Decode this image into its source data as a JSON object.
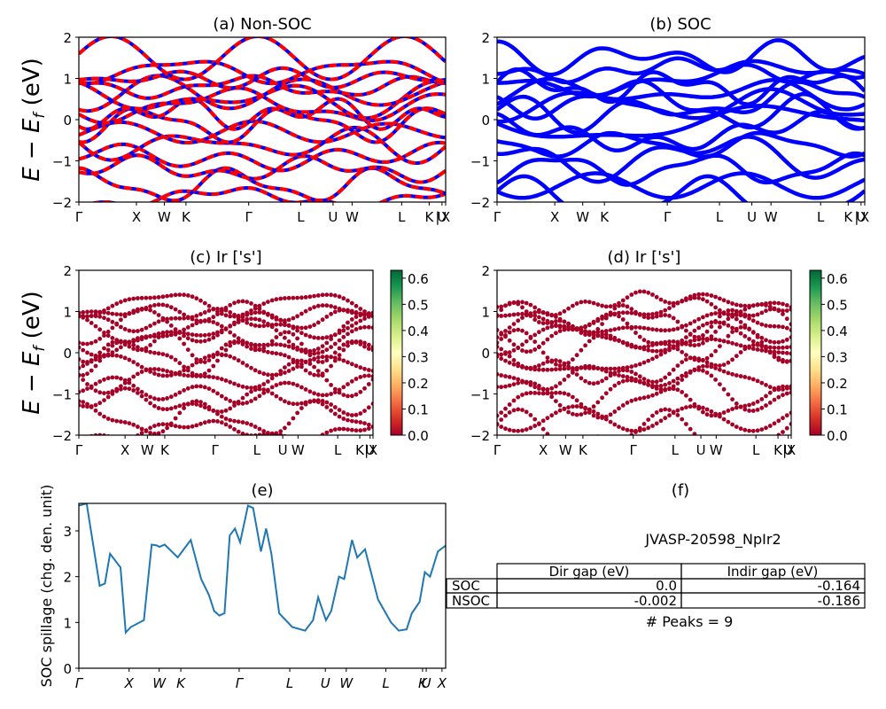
{
  "charts": {
    "a": {
      "title": "(a) Non-SOC",
      "ylabel": "E − E_f (eV)",
      "ylim": [
        -2,
        2
      ],
      "yticks": [
        "2",
        "1",
        "0",
        "−1",
        "−2"
      ],
      "kpath": [
        "Γ",
        "X",
        "W",
        "K",
        "Γ",
        "L",
        "U",
        "W",
        "L",
        "K",
        "|",
        "U",
        "X"
      ],
      "kpos": [
        0,
        0.21,
        0.31,
        0.39,
        0.62,
        0.81,
        0.93,
        1.0,
        1.18,
        1.28,
        1.31,
        1.34,
        1.38
      ],
      "styles": [
        "#0000ff",
        "#ff0000"
      ]
    },
    "b": {
      "title": "(b) SOC",
      "ylim": [
        -2,
        2
      ],
      "yticks": [
        "2",
        "1",
        "0",
        "−1",
        "−2"
      ],
      "kpath": [
        "Γ",
        "X",
        "W",
        "K",
        "Γ",
        "L",
        "U",
        "W",
        "L",
        "K",
        "|",
        "U",
        "X"
      ],
      "kpos": [
        0,
        0.21,
        0.31,
        0.39,
        0.62,
        0.81,
        0.93,
        1.0,
        1.18,
        1.28,
        1.31,
        1.34,
        1.38
      ],
      "color": "#0000ff"
    },
    "c": {
      "title": "(c)  Ir ['s']",
      "ylabel": "E − E_f (eV)",
      "ylim": [
        -2,
        2
      ],
      "yticks": [
        "2",
        "1",
        "0",
        "−1",
        "−2"
      ],
      "kpath": [
        "Γ",
        "X",
        "W",
        "K",
        "Γ",
        "L",
        "U",
        "W",
        "L",
        "K",
        "|",
        "U",
        "X"
      ],
      "colorbar_ticks": [
        "0.6",
        "0.5",
        "0.4",
        "0.3",
        "0.2",
        "0.1",
        "0.0"
      ],
      "colorbar_range": [
        0,
        0.63
      ],
      "dot_color": "#a50026"
    },
    "d": {
      "title": "(d) Ir ['s']",
      "ylim": [
        -2,
        2
      ],
      "yticks": [
        "2",
        "1",
        "0",
        "−1",
        "−2"
      ],
      "kpath": [
        "Γ",
        "X",
        "W",
        "K",
        "Γ",
        "L",
        "U",
        "W",
        "L",
        "K",
        "|",
        "U",
        "X"
      ],
      "colorbar_ticks": [
        "0.6",
        "0.5",
        "0.4",
        "0.3",
        "0.2",
        "0.1",
        "0.0"
      ],
      "colorbar_range": [
        0,
        0.63
      ],
      "dot_color": "#a50026"
    },
    "e": {
      "title": "(e)",
      "ylabel": "SOC spillage (chg. den. unit)",
      "ylim": [
        0,
        3.6
      ],
      "yticks": [
        "0",
        "1",
        "2",
        "3"
      ],
      "kpath": [
        "Γ",
        "X",
        "W",
        "K",
        "Γ",
        "L",
        "U",
        "W",
        "L",
        "K",
        "U",
        "X"
      ],
      "line_color": "#1f77b4"
    },
    "f": {
      "title": "(f)",
      "material": "JVASP-20598_NpIr2",
      "table": {
        "col_headers": [
          "Dir gap (eV)",
          "Indir gap (eV)"
        ],
        "rows": [
          {
            "label": "SOC",
            "values": [
              "0.0",
              "-0.164"
            ]
          },
          {
            "label": "NSOC",
            "values": [
              "-0.002",
              "-0.186"
            ]
          }
        ]
      },
      "peaks": "# Peaks = 9"
    }
  },
  "chart_data": [
    {
      "type": "line",
      "title": "(a) Non-SOC",
      "ylabel": "E - E_f (eV)",
      "ylim": [
        -2,
        2
      ],
      "x_ticks": [
        "Γ",
        "X",
        "W",
        "K",
        "Γ",
        "L",
        "U",
        "W",
        "L",
        "K|U",
        "X"
      ],
      "series": []
    },
    {
      "type": "line",
      "title": "(b) SOC",
      "ylim": [
        -2,
        2
      ],
      "x_ticks": [
        "Γ",
        "X",
        "W",
        "K",
        "Γ",
        "L",
        "U",
        "W",
        "L",
        "K|U",
        "X"
      ],
      "series": []
    },
    {
      "type": "scatter",
      "title": "(c)  Ir ['s']",
      "ylim": [
        -2,
        2
      ],
      "colorbar": [
        0.0,
        0.6
      ],
      "series": []
    },
    {
      "type": "scatter",
      "title": "(d) Ir ['s']",
      "ylim": [
        -2,
        2
      ],
      "colorbar": [
        0.0,
        0.6
      ],
      "series": []
    },
    {
      "type": "line",
      "title": "(e)",
      "ylabel": "SOC spillage (chg. den. unit)",
      "ylim": [
        0,
        3.6
      ],
      "x": [
        0,
        0.03,
        0.08,
        0.1,
        0.12,
        0.16,
        0.18,
        0.2,
        0.25,
        0.28,
        0.3,
        0.31,
        0.33,
        0.38,
        0.43,
        0.47,
        0.5,
        0.52,
        0.54,
        0.56,
        0.58,
        0.6,
        0.62,
        0.65,
        0.67,
        0.7,
        0.72,
        0.74,
        0.77,
        0.82,
        0.87,
        0.9,
        0.92,
        0.95,
        0.97,
        1.0,
        1.02,
        1.05,
        1.07,
        1.1,
        1.15,
        1.2,
        1.23,
        1.26,
        1.28,
        1.31,
        1.33,
        1.35,
        1.38,
        1.41
      ],
      "values": [
        3.55,
        3.6,
        1.8,
        1.85,
        2.5,
        2.2,
        0.78,
        0.9,
        1.05,
        2.7,
        2.68,
        2.65,
        2.7,
        2.42,
        2.8,
        1.95,
        1.6,
        1.25,
        1.15,
        1.2,
        2.9,
        3.05,
        2.75,
        3.55,
        3.5,
        2.55,
        3.05,
        2.5,
        1.2,
        0.9,
        0.82,
        1.05,
        1.55,
        1.05,
        1.25,
        2.0,
        1.95,
        2.8,
        2.42,
        2.6,
        1.5,
        1.0,
        0.82,
        0.85,
        1.2,
        1.45,
        2.1,
        2.0,
        2.55,
        2.68
      ]
    },
    {
      "type": "table",
      "title": "JVASP-20598_NpIr2",
      "columns": [
        "",
        "Dir gap (eV)",
        "Indir gap (eV)"
      ],
      "rows": [
        [
          "SOC",
          "0.0",
          "-0.164"
        ],
        [
          "NSOC",
          "-0.002",
          "-0.186"
        ]
      ],
      "note": "# Peaks = 9"
    }
  ]
}
